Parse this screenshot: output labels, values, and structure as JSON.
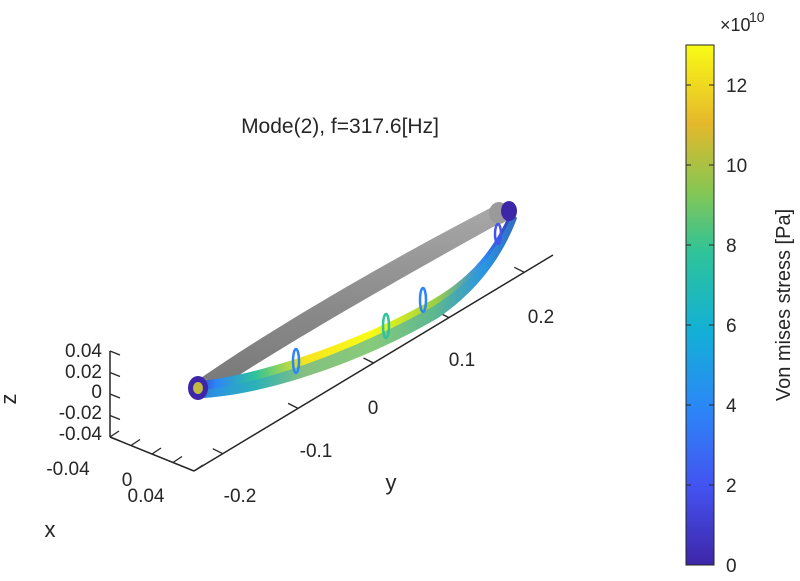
{
  "chart_data": {
    "type": "surface-3d",
    "title": "Mode(2), f=317.6[Hz]",
    "axes": {
      "x": {
        "label": "x",
        "ticks": [
          "-0.04",
          "0",
          "0.04"
        ]
      },
      "y": {
        "label": "y",
        "ticks": [
          "-0.2",
          "-0.1",
          "0",
          "0.1",
          "0.2"
        ]
      },
      "z": {
        "label": "z",
        "ticks": [
          "0.04",
          "0.02",
          "0",
          "-0.02",
          "-0.04"
        ]
      }
    },
    "colorbar": {
      "label": "Von mises stress [Pa]",
      "exponent_prefix": "×10",
      "exponent": "10",
      "ticks": [
        0,
        2,
        4,
        6,
        8,
        10,
        12
      ],
      "range": [
        0,
        13
      ],
      "colormap": "parula"
    },
    "series": [
      {
        "name": "",
        "kind": "undeformed",
        "color": "#8a8a8a"
      },
      {
        "name": "",
        "kind": "deformed-mode-shape",
        "colormap": "parula"
      }
    ]
  }
}
